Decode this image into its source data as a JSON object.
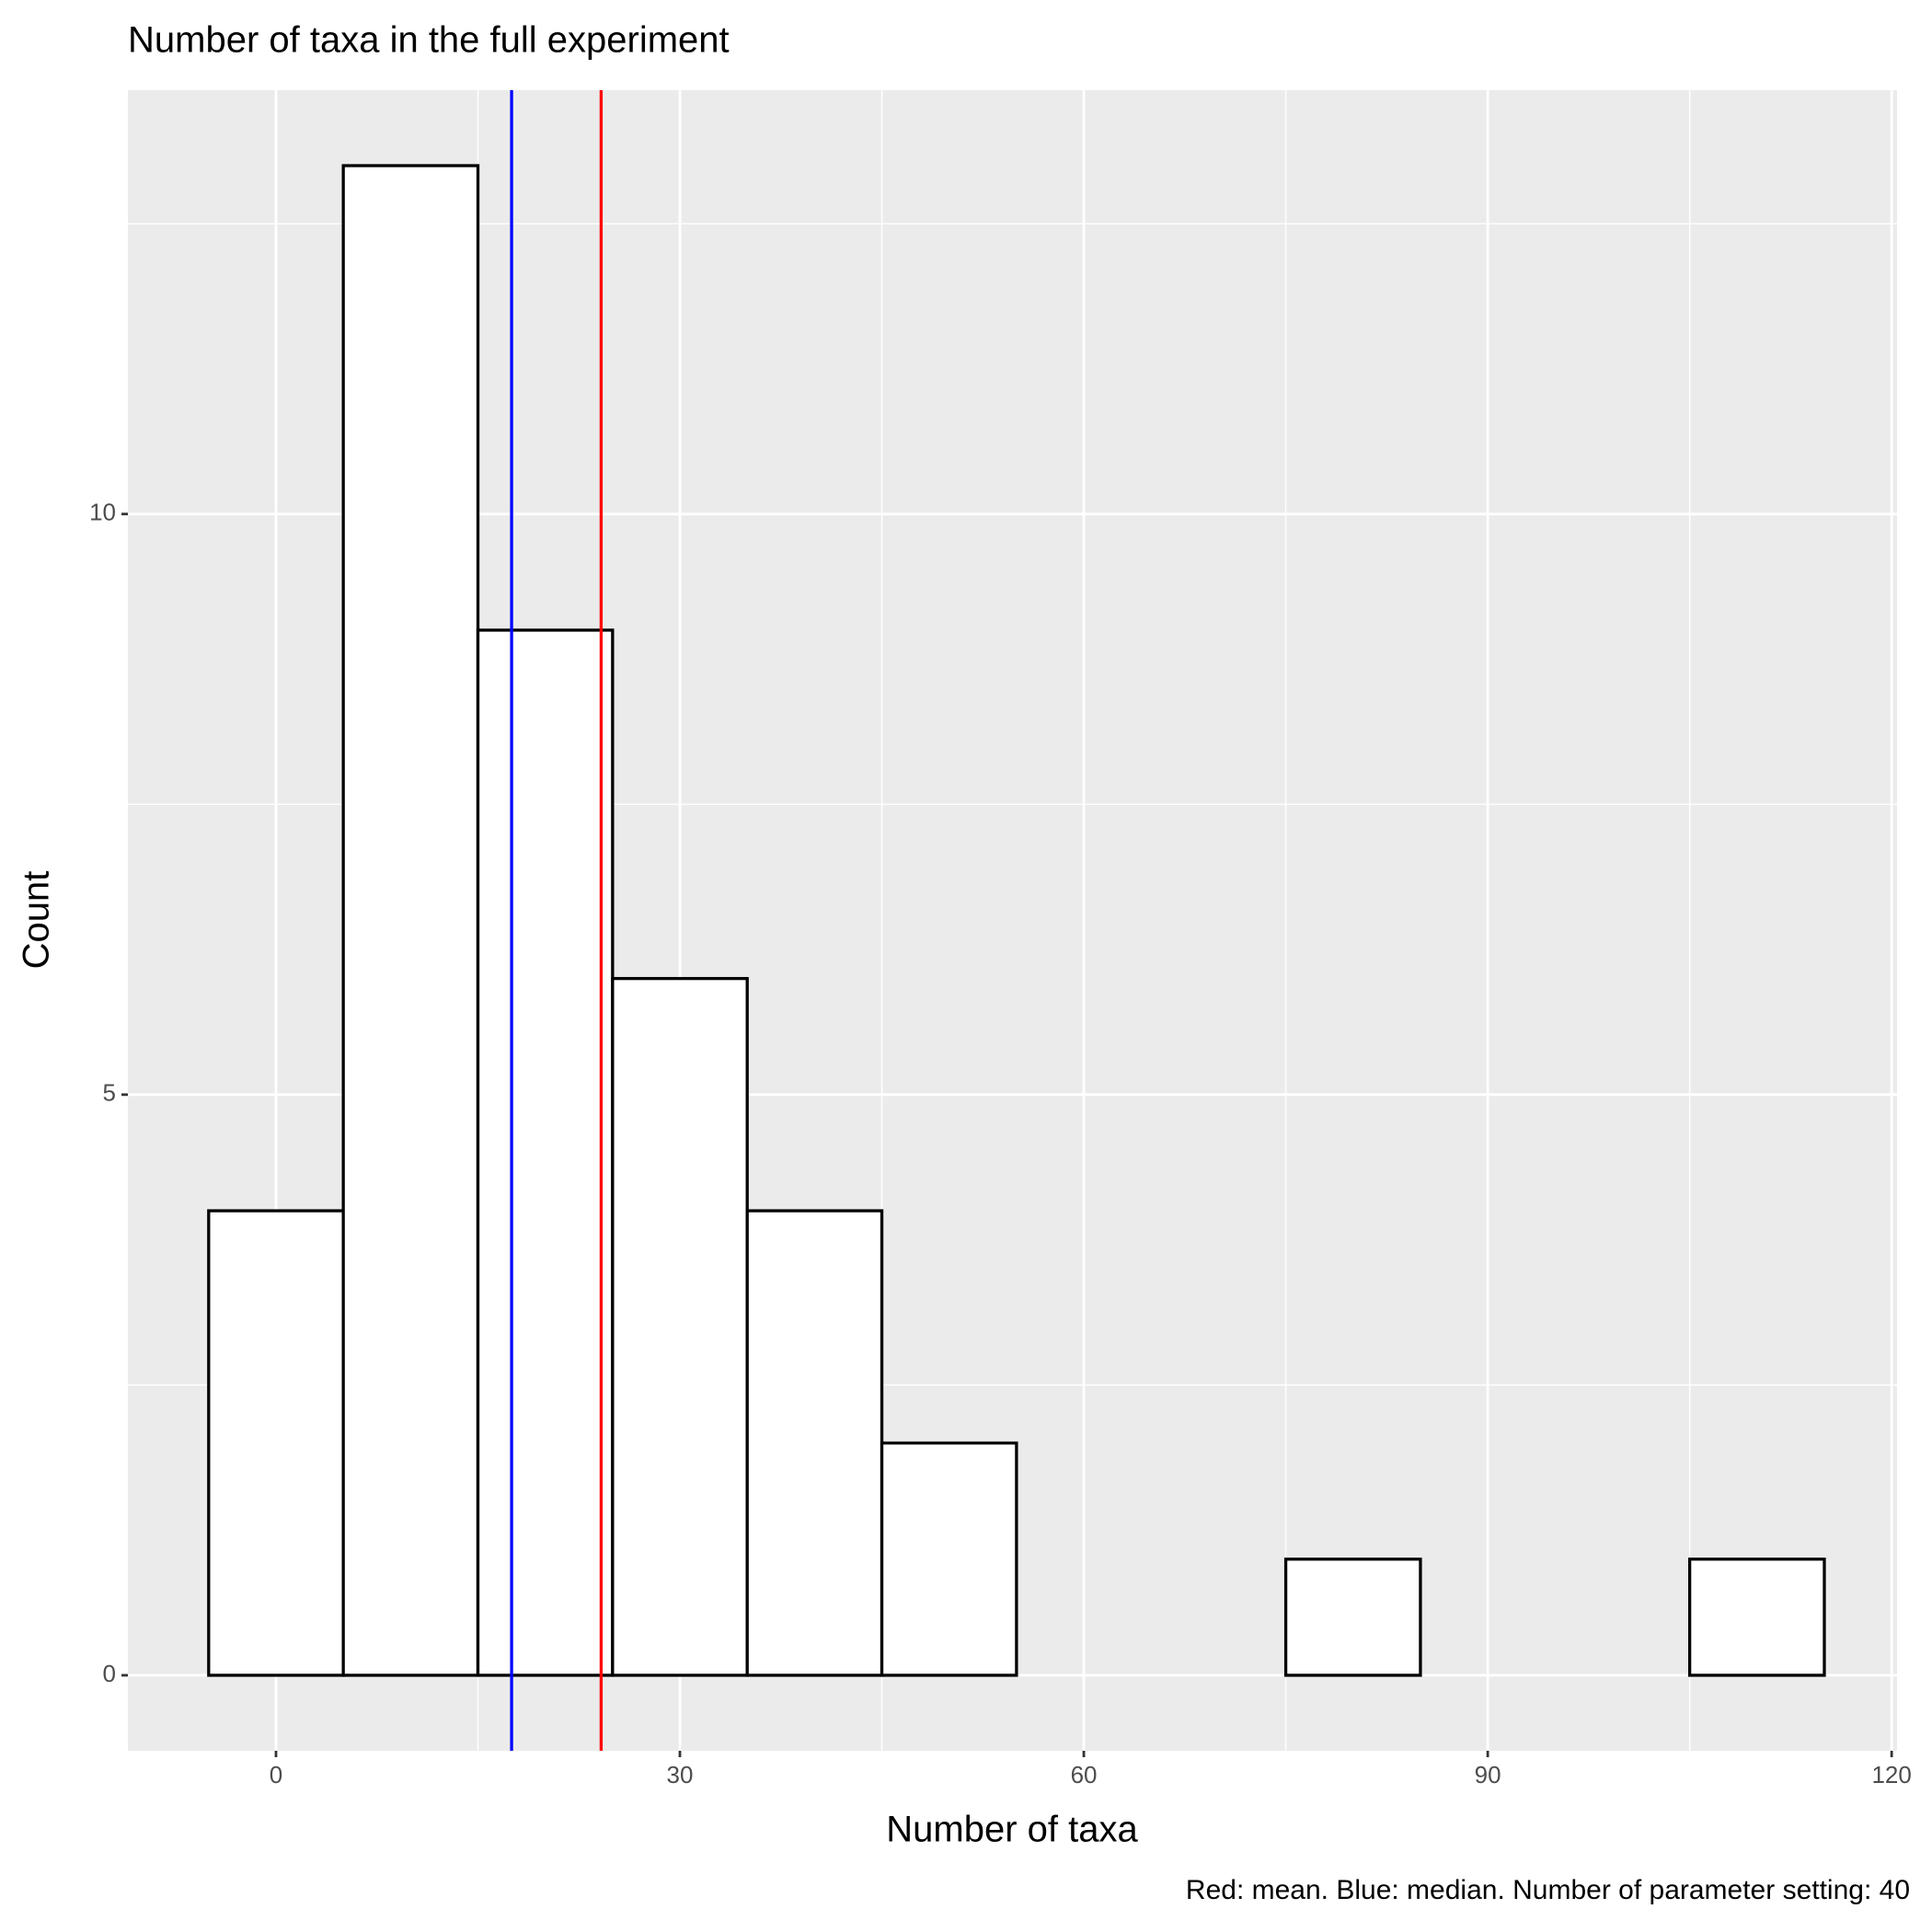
{
  "chart_data": {
    "type": "histogram",
    "title": "Number of taxa in the full experiment",
    "x_label": "Number of taxa",
    "y_label": "Count",
    "caption": "Red: mean. Blue: median. Number of parameter setting: 40",
    "bins": [
      -5,
      5,
      15,
      25,
      35,
      45,
      55,
      65,
      75,
      85,
      95,
      105,
      115
    ],
    "values": [
      4,
      13,
      9,
      6,
      4,
      2,
      0,
      0,
      1,
      0,
      0,
      1
    ],
    "fill": "#ffffff",
    "edge_color": "#000000",
    "xlim": [
      -11,
      120.4
    ],
    "ylim": [
      -0.65,
      13.65
    ],
    "xticks": [
      0,
      30,
      60,
      90,
      120
    ],
    "yticks": [
      0,
      5,
      10
    ],
    "minor_xticks": [
      15,
      45,
      75,
      105
    ],
    "minor_yticks": [
      2.5,
      7.5,
      12.5
    ],
    "grid": true,
    "panel_background": "#ebebeb",
    "reference_lines": [
      {
        "value": 24.15,
        "color": "#ff0000"
      },
      {
        "value": 17.5,
        "color": "#0000ff"
      }
    ]
  }
}
